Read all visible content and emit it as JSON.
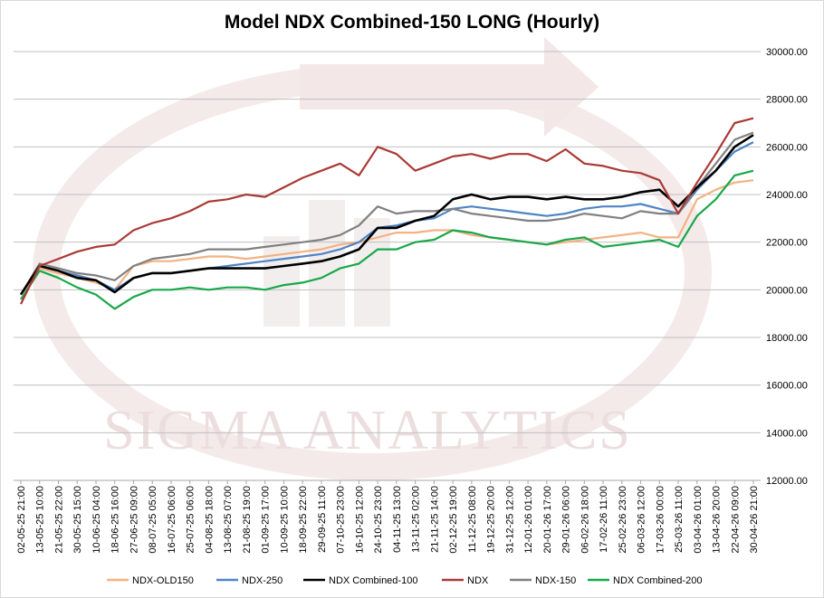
{
  "chart_data": {
    "type": "line",
    "title": "Model NDX Combined-150 LONG (Hourly)",
    "watermark": "SIGMA ANALYTICS",
    "ylim": [
      12000,
      30000
    ],
    "y_ticks": [
      "12000.00",
      "14000.00",
      "16000.00",
      "18000.00",
      "20000.00",
      "22000.00",
      "24000.00",
      "26000.00",
      "28000.00",
      "30000.00"
    ],
    "y_tick_values": [
      12000,
      14000,
      16000,
      18000,
      20000,
      22000,
      24000,
      26000,
      28000,
      30000
    ],
    "x_ticks": [
      "02-05-25 21:00",
      "13-05-25 10:00",
      "21-05-25 22:00",
      "30-05-25 15:00",
      "10-06-25 04:00",
      "18-06-25 16:00",
      "27-06-25 09:00",
      "08-07-25 05:00",
      "16-07-25 06:00",
      "25-07-25 06:00",
      "04-08-25 18:00",
      "13-08-25 07:00",
      "21-08-25 19:00",
      "01-09-25 17:00",
      "10-09-25 10:00",
      "18-09-25 22:00",
      "29-09-25 11:00",
      "07-10-25 23:00",
      "16-10-25 12:00",
      "24-10-25 23:00",
      "04-11-25 13:00",
      "13-11-25 02:00",
      "21-11-25 14:00",
      "02-12-25 19:00",
      "11-12-25 08:00",
      "19-12-25 20:00",
      "31-12-25 12:00",
      "12-01-26 01:00",
      "20-01-26 17:00",
      "29-01-26 06:00",
      "06-02-26 18:00",
      "17-02-26 11:00",
      "25-02-26 23:00",
      "06-03-26 12:00",
      "17-03-26 00:00",
      "25-03-26 11:00",
      "03-04-26 01:00",
      "13-04-26 20:00",
      "22-04-26 09:00",
      "30-04-26 21:00"
    ],
    "series": [
      {
        "name": "NDX-OLD150",
        "color": "#f4b183",
        "values": [
          19800,
          20900,
          20700,
          20500,
          20300,
          20000,
          21000,
          21200,
          21200,
          21300,
          21400,
          21400,
          21300,
          21400,
          21500,
          21600,
          21700,
          21900,
          22000,
          22200,
          22400,
          22400,
          22500,
          22500,
          22300,
          22200,
          22100,
          22000,
          21900,
          22000,
          22100,
          22200,
          22300,
          22400,
          22200,
          22200,
          23800,
          24200,
          24500,
          24600
        ]
      },
      {
        "name": "NDX-250",
        "color": "#4e84c4",
        "values": [
          19800,
          21000,
          20800,
          20600,
          20400,
          20000,
          20500,
          20700,
          20700,
          20800,
          20900,
          21000,
          21100,
          21200,
          21300,
          21400,
          21500,
          21700,
          22000,
          22600,
          22700,
          22900,
          23000,
          23400,
          23500,
          23400,
          23300,
          23200,
          23100,
          23200,
          23400,
          23500,
          23500,
          23600,
          23400,
          23200,
          24200,
          25000,
          25800,
          26200
        ]
      },
      {
        "name": "NDX Combined-100",
        "color": "#000000",
        "values": [
          19800,
          21000,
          20800,
          20500,
          20400,
          19900,
          20500,
          20700,
          20700,
          20800,
          20900,
          20900,
          20900,
          20900,
          21000,
          21100,
          21200,
          21400,
          21700,
          22600,
          22600,
          22900,
          23100,
          23800,
          24000,
          23800,
          23900,
          23900,
          23800,
          23900,
          23800,
          23800,
          23900,
          24100,
          24200,
          23500,
          24300,
          25000,
          26000,
          26500
        ]
      },
      {
        "name": "NDX",
        "color": "#a93a35",
        "values": [
          19400,
          21000,
          21300,
          21600,
          21800,
          21900,
          22500,
          22800,
          23000,
          23300,
          23700,
          23800,
          24000,
          23900,
          24300,
          24700,
          25000,
          25300,
          24800,
          26000,
          25700,
          25000,
          25300,
          25600,
          25700,
          25500,
          25700,
          25700,
          25400,
          25900,
          25300,
          25200,
          25000,
          24900,
          24600,
          23200,
          24500,
          25700,
          27000,
          27200
        ]
      },
      {
        "name": "NDX-150",
        "color": "#808080",
        "values": [
          19800,
          21100,
          20900,
          20700,
          20600,
          20400,
          21000,
          21300,
          21400,
          21500,
          21700,
          21700,
          21700,
          21800,
          21900,
          22000,
          22100,
          22300,
          22700,
          23500,
          23200,
          23300,
          23300,
          23400,
          23200,
          23100,
          23000,
          22900,
          22900,
          23000,
          23200,
          23100,
          23000,
          23300,
          23200,
          23200,
          24300,
          25300,
          26300,
          26600
        ]
      },
      {
        "name": "NDX Combined-200",
        "color": "#17a84a",
        "values": [
          19600,
          20800,
          20500,
          20100,
          19800,
          19200,
          19700,
          20000,
          20000,
          20100,
          20000,
          20100,
          20100,
          20000,
          20200,
          20300,
          20500,
          20900,
          21100,
          21700,
          21700,
          22000,
          22100,
          22500,
          22400,
          22200,
          22100,
          22000,
          21900,
          22100,
          22200,
          21800,
          21900,
          22000,
          22100,
          21800,
          23100,
          23800,
          24800,
          25000
        ]
      }
    ]
  }
}
